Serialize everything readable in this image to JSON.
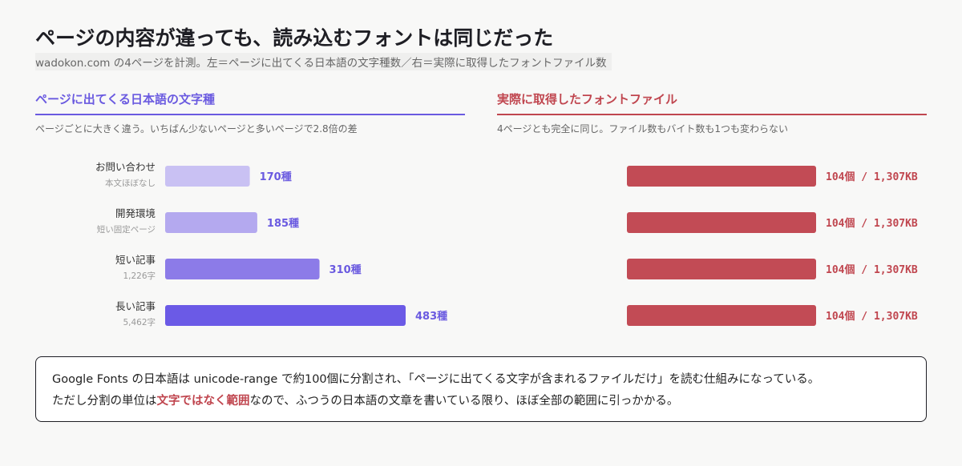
{
  "title": "ページの内容が違っても、読み込むフォントは同じだった",
  "subtitle": "wadokon.com の4ページを計測。左＝ページに出てくる日本語の文字種数／右＝実際に取得したフォントファイル数",
  "left_panel": {
    "heading": "ページに出てくる日本語の文字種",
    "description": "ページごとに大きく違う。いちばん少ないページと多いページで2.8倍の差"
  },
  "right_panel": {
    "heading": "実際に取得したフォントファイル",
    "description": "4ページとも完全に同じ。ファイル数もバイト数も1つも変わらない"
  },
  "chart_data": [
    {
      "type": "bar",
      "orientation": "horizontal",
      "categories": [
        "お問い合わせ",
        "開発環境",
        "短い記事",
        "長い記事"
      ],
      "sublabels": [
        "本文ほぼなし",
        "短い固定ページ",
        "1,226字",
        "5,462字"
      ],
      "values": [
        170,
        185,
        310,
        483
      ],
      "value_labels": [
        "170種",
        "185種",
        "310種",
        "483種"
      ],
      "colors": [
        "#c9c1f3",
        "#b4a9ef",
        "#8c7be8",
        "#6b5ae6"
      ],
      "label_color": "#6a5ae0"
    },
    {
      "type": "bar",
      "orientation": "horizontal",
      "categories": [
        "お問い合わせ",
        "開発環境",
        "短い記事",
        "長い記事"
      ],
      "values": [
        104,
        104,
        104,
        104
      ],
      "bytes_kb": [
        1307,
        1307,
        1307,
        1307
      ],
      "value_labels": [
        "104個 / 1,307KB",
        "104個 / 1,307KB",
        "104個 / 1,307KB",
        "104個 / 1,307KB"
      ],
      "colors": [
        "#c24b55",
        "#c24b55",
        "#c24b55",
        "#c24b55"
      ],
      "label_color": "#c0464f"
    }
  ],
  "note": {
    "line1": "Google Fonts の日本語は unicode-range で約100個に分割され、「ページに出てくる文字が含まれるファイルだけ」を読む仕組みになっている。",
    "line2_before": "ただし分割の単位は",
    "line2_highlight": "文字ではなく範囲",
    "line2_after": "なので、ふつうの日本語の文章を書いている限り、ほぼ全部の範囲に引っかかる。"
  }
}
